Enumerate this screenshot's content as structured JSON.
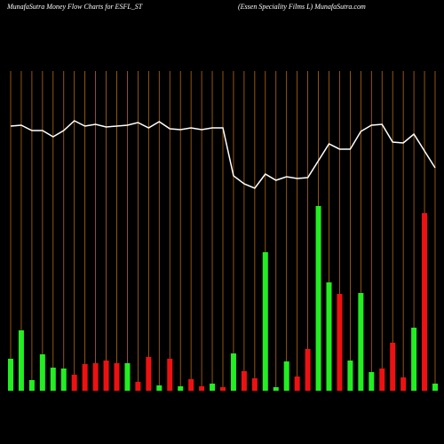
{
  "chart_data": {
    "type": "bar",
    "title": "MunafaSutra  Money Flow  Charts for ESFL_ST",
    "subtitle": "(Essen  Speciality Films L) MunafaSutra.com",
    "ylim": [
      0,
      360
    ],
    "values": [
      36,
      68,
      12,
      41,
      26,
      25,
      18,
      30,
      31,
      34,
      31,
      31,
      10,
      38,
      6,
      36,
      5,
      13,
      5,
      8,
      4,
      42,
      22,
      14,
      156,
      4,
      33,
      16,
      47,
      208,
      122,
      109,
      34,
      110,
      21,
      25,
      54,
      15,
      71,
      200,
      8
    ],
    "colors": [
      "#22ee22",
      "#22ee22",
      "#22ee22",
      "#22ee22",
      "#22ee22",
      "#22ee22",
      "#ee1111",
      "#ee1111",
      "#ee1111",
      "#ee1111",
      "#ee1111",
      "#22ee22",
      "#ee1111",
      "#ee1111",
      "#22ee22",
      "#ee1111",
      "#22ee22",
      "#ee1111",
      "#ee1111",
      "#22ee22",
      "#ee1111",
      "#22ee22",
      "#ee1111",
      "#ee1111",
      "#22ee22",
      "#22ee22",
      "#22ee22",
      "#ee1111",
      "#ee1111",
      "#22ee22",
      "#22ee22",
      "#ee1111",
      "#22ee22",
      "#22ee22",
      "#22ee22",
      "#ee1111",
      "#ee1111",
      "#ee1111",
      "#22ee22",
      "#ee1111",
      "#22ee22"
    ],
    "line_values": [
      298,
      299,
      293,
      293,
      286,
      293,
      304,
      298,
      300,
      297,
      298,
      299,
      302,
      296,
      303,
      295,
      294,
      296,
      294,
      296,
      296,
      242,
      233,
      228,
      244,
      237,
      241,
      239,
      240,
      259,
      278,
      272,
      272,
      292,
      299,
      300,
      280,
      279,
      289,
      270,
      251
    ],
    "line_color": "#ffffff",
    "grid_color": "#b86a10"
  }
}
